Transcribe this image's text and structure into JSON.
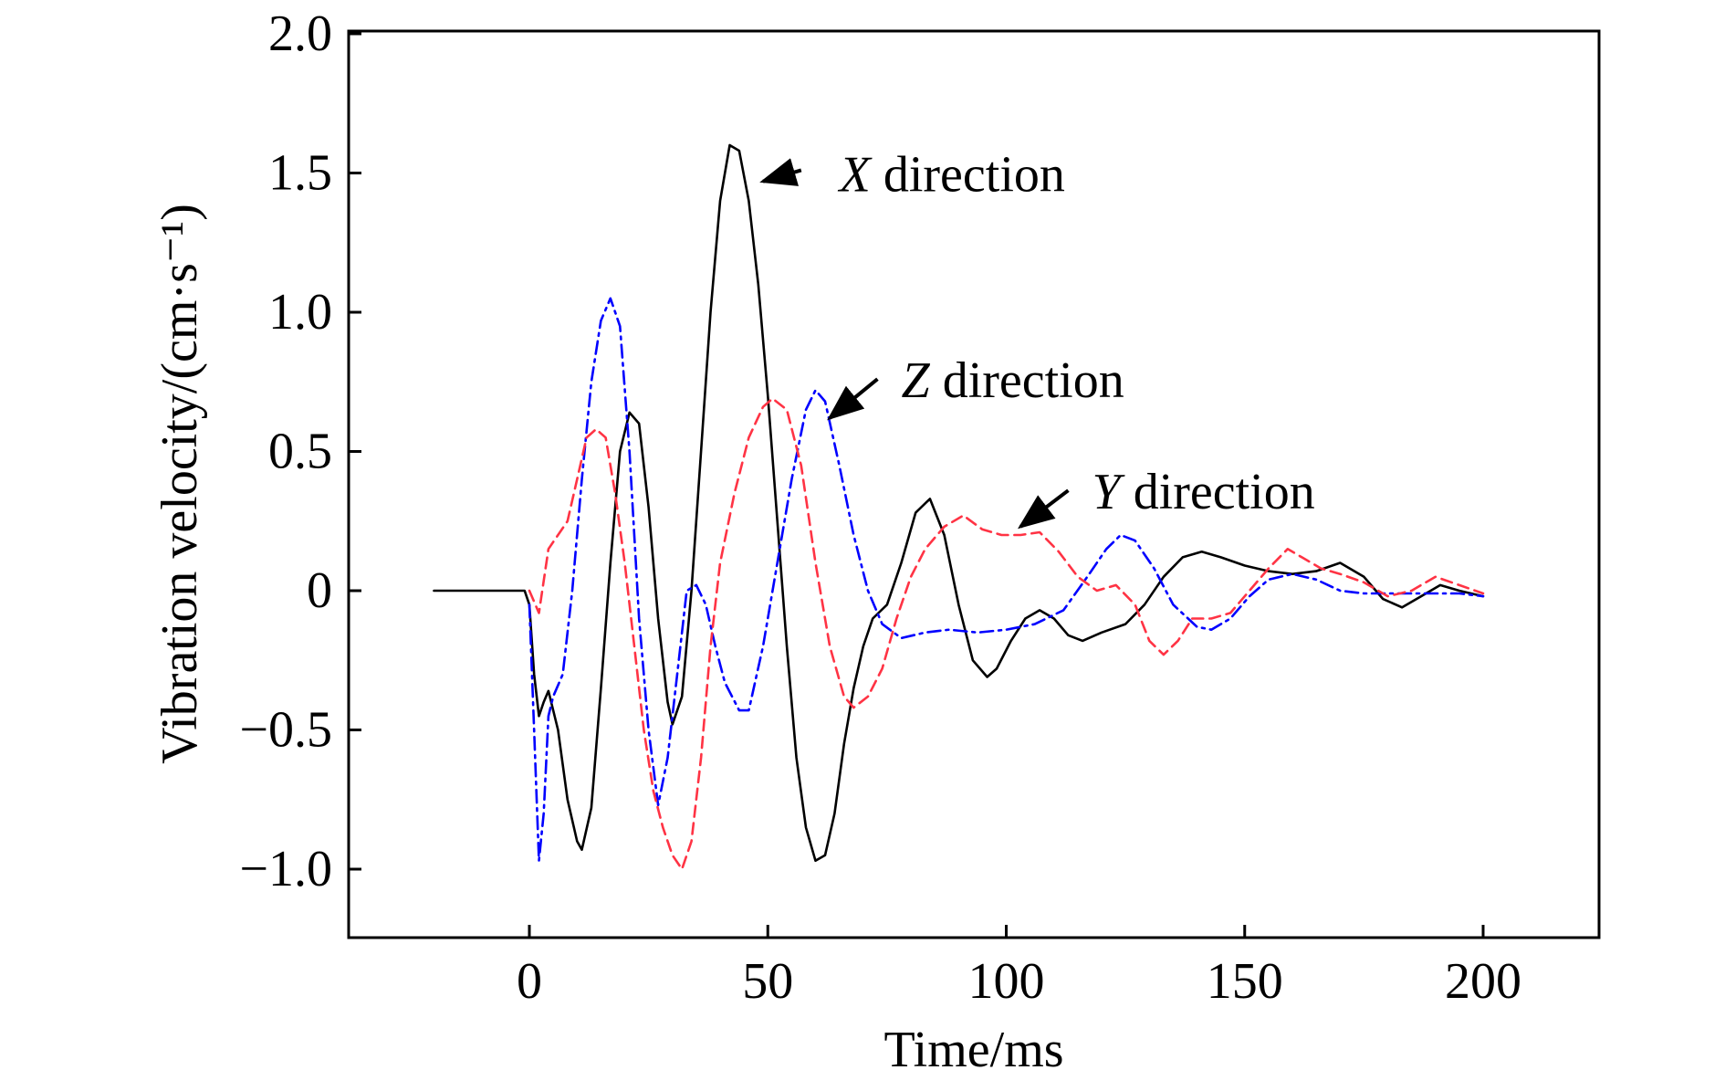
{
  "chart_data": {
    "type": "line",
    "xlabel": "Time/ms",
    "ylabel": "Vibration velocity/(cm·s⁻¹)",
    "xlim": [
      -40,
      225
    ],
    "ylim": [
      -1.25,
      2.0
    ],
    "x_ticks": [
      0,
      50,
      100,
      150,
      200
    ],
    "x_tick_labels": [
      "0",
      "50",
      "100",
      "150",
      "200"
    ],
    "y_ticks": [
      -1.0,
      -0.5,
      0,
      0.5,
      1.0,
      1.5,
      2.0
    ],
    "y_tick_labels": [
      "−1.0",
      "−0.5",
      "0",
      "0.5",
      "1.0",
      "1.5",
      "2.0"
    ],
    "grid": false,
    "legend": "none",
    "series": [
      {
        "color": "#000000",
        "style": "solid",
        "points": [
          [
            -20,
            0
          ],
          [
            -1,
            0
          ],
          [
            0,
            -0.05
          ],
          [
            1,
            -0.3
          ],
          [
            2,
            -0.45
          ],
          [
            3,
            -0.4
          ],
          [
            4,
            -0.36
          ],
          [
            6,
            -0.5
          ],
          [
            8,
            -0.75
          ],
          [
            10,
            -0.9
          ],
          [
            11,
            -0.93
          ],
          [
            13,
            -0.78
          ],
          [
            15,
            -0.35
          ],
          [
            17,
            0.1
          ],
          [
            19,
            0.5
          ],
          [
            21,
            0.64
          ],
          [
            23,
            0.6
          ],
          [
            25,
            0.3
          ],
          [
            27,
            -0.1
          ],
          [
            29,
            -0.4
          ],
          [
            30,
            -0.48
          ],
          [
            32,
            -0.38
          ],
          [
            34,
            0.0
          ],
          [
            36,
            0.5
          ],
          [
            38,
            1.0
          ],
          [
            40,
            1.4
          ],
          [
            42,
            1.6
          ],
          [
            44,
            1.58
          ],
          [
            46,
            1.4
          ],
          [
            48,
            1.1
          ],
          [
            50,
            0.7
          ],
          [
            52,
            0.25
          ],
          [
            54,
            -0.2
          ],
          [
            56,
            -0.6
          ],
          [
            58,
            -0.85
          ],
          [
            60,
            -0.97
          ],
          [
            62,
            -0.95
          ],
          [
            64,
            -0.8
          ],
          [
            66,
            -0.55
          ],
          [
            68,
            -0.35
          ],
          [
            70,
            -0.2
          ],
          [
            72,
            -0.1
          ],
          [
            75,
            -0.05
          ],
          [
            78,
            0.1
          ],
          [
            81,
            0.28
          ],
          [
            84,
            0.33
          ],
          [
            87,
            0.2
          ],
          [
            90,
            -0.05
          ],
          [
            93,
            -0.25
          ],
          [
            96,
            -0.31
          ],
          [
            98,
            -0.28
          ],
          [
            101,
            -0.18
          ],
          [
            104,
            -0.1
          ],
          [
            107,
            -0.07
          ],
          [
            110,
            -0.1
          ],
          [
            113,
            -0.16
          ],
          [
            116,
            -0.18
          ],
          [
            120,
            -0.15
          ],
          [
            125,
            -0.12
          ],
          [
            129,
            -0.05
          ],
          [
            133,
            0.05
          ],
          [
            137,
            0.12
          ],
          [
            141,
            0.14
          ],
          [
            145,
            0.12
          ],
          [
            150,
            0.09
          ],
          [
            155,
            0.07
          ],
          [
            160,
            0.06
          ],
          [
            165,
            0.07
          ],
          [
            170,
            0.1
          ],
          [
            175,
            0.05
          ],
          [
            179,
            -0.03
          ],
          [
            183,
            -0.06
          ],
          [
            187,
            -0.02
          ],
          [
            191,
            0.02
          ],
          [
            195,
            0.0
          ],
          [
            200,
            -0.02
          ]
        ]
      },
      {
        "color": "#0000ff",
        "style": "dashdot",
        "points": [
          [
            0,
            -0.05
          ],
          [
            1,
            -0.5
          ],
          [
            2,
            -0.97
          ],
          [
            3,
            -0.8
          ],
          [
            4,
            -0.45
          ],
          [
            5,
            -0.38
          ],
          [
            7,
            -0.3
          ],
          [
            9,
            0.0
          ],
          [
            11,
            0.4
          ],
          [
            13,
            0.75
          ],
          [
            15,
            0.97
          ],
          [
            17,
            1.05
          ],
          [
            19,
            0.95
          ],
          [
            21,
            0.5
          ],
          [
            23,
            -0.1
          ],
          [
            25,
            -0.5
          ],
          [
            27,
            -0.77
          ],
          [
            29,
            -0.6
          ],
          [
            31,
            -0.3
          ],
          [
            33,
            0.0
          ],
          [
            35,
            0.02
          ],
          [
            37,
            -0.05
          ],
          [
            39,
            -0.2
          ],
          [
            41,
            -0.33
          ],
          [
            44,
            -0.43
          ],
          [
            46,
            -0.43
          ],
          [
            49,
            -0.2
          ],
          [
            52,
            0.1
          ],
          [
            55,
            0.4
          ],
          [
            58,
            0.65
          ],
          [
            60,
            0.72
          ],
          [
            62,
            0.68
          ],
          [
            65,
            0.45
          ],
          [
            68,
            0.2
          ],
          [
            71,
            0.0
          ],
          [
            74,
            -0.12
          ],
          [
            78,
            -0.17
          ],
          [
            83,
            -0.15
          ],
          [
            88,
            -0.14
          ],
          [
            94,
            -0.15
          ],
          [
            100,
            -0.14
          ],
          [
            106,
            -0.12
          ],
          [
            112,
            -0.07
          ],
          [
            117,
            0.05
          ],
          [
            121,
            0.15
          ],
          [
            124,
            0.2
          ],
          [
            127,
            0.18
          ],
          [
            131,
            0.08
          ],
          [
            135,
            -0.05
          ],
          [
            140,
            -0.13
          ],
          [
            143,
            -0.14
          ],
          [
            147,
            -0.1
          ],
          [
            151,
            -0.02
          ],
          [
            155,
            0.04
          ],
          [
            160,
            0.06
          ],
          [
            165,
            0.04
          ],
          [
            170,
            0.0
          ],
          [
            175,
            -0.01
          ],
          [
            185,
            -0.01
          ],
          [
            195,
            -0.01
          ],
          [
            200,
            -0.02
          ]
        ]
      },
      {
        "color": "#ff3344",
        "style": "dashed",
        "points": [
          [
            0,
            0
          ],
          [
            2,
            -0.08
          ],
          [
            4,
            0.15
          ],
          [
            6,
            0.2
          ],
          [
            8,
            0.25
          ],
          [
            10,
            0.4
          ],
          [
            12,
            0.55
          ],
          [
            14,
            0.58
          ],
          [
            16,
            0.55
          ],
          [
            18,
            0.35
          ],
          [
            20,
            0.1
          ],
          [
            22,
            -0.2
          ],
          [
            24,
            -0.5
          ],
          [
            26,
            -0.72
          ],
          [
            28,
            -0.85
          ],
          [
            30,
            -0.95
          ],
          [
            32,
            -1.0
          ],
          [
            34,
            -0.9
          ],
          [
            36,
            -0.6
          ],
          [
            38,
            -0.2
          ],
          [
            40,
            0.1
          ],
          [
            43,
            0.35
          ],
          [
            46,
            0.55
          ],
          [
            49,
            0.66
          ],
          [
            51,
            0.69
          ],
          [
            54,
            0.65
          ],
          [
            57,
            0.45
          ],
          [
            60,
            0.1
          ],
          [
            63,
            -0.2
          ],
          [
            66,
            -0.38
          ],
          [
            68,
            -0.42
          ],
          [
            71,
            -0.38
          ],
          [
            74,
            -0.28
          ],
          [
            77,
            -0.1
          ],
          [
            80,
            0.05
          ],
          [
            83,
            0.15
          ],
          [
            87,
            0.23
          ],
          [
            91,
            0.27
          ],
          [
            95,
            0.22
          ],
          [
            99,
            0.2
          ],
          [
            103,
            0.2
          ],
          [
            107,
            0.21
          ],
          [
            111,
            0.14
          ],
          [
            115,
            0.05
          ],
          [
            119,
            0.0
          ],
          [
            123,
            0.02
          ],
          [
            127,
            -0.05
          ],
          [
            130,
            -0.18
          ],
          [
            133,
            -0.23
          ],
          [
            136,
            -0.18
          ],
          [
            139,
            -0.1
          ],
          [
            143,
            -0.1
          ],
          [
            147,
            -0.08
          ],
          [
            151,
            0.0
          ],
          [
            155,
            0.08
          ],
          [
            159,
            0.15
          ],
          [
            162,
            0.12
          ],
          [
            166,
            0.08
          ],
          [
            170,
            0.06
          ],
          [
            175,
            0.03
          ],
          [
            180,
            -0.02
          ],
          [
            185,
            0.0
          ],
          [
            190,
            0.05
          ],
          [
            195,
            0.02
          ],
          [
            200,
            -0.01
          ]
        ]
      }
    ],
    "annotations": [
      {
        "var": "X",
        "text": " direction",
        "x": 65,
        "y": 1.5,
        "arrow_to": [
          49,
          1.47
        ],
        "arrow_from": [
          57,
          1.51
        ]
      },
      {
        "var": "Z",
        "text": " direction",
        "x": 78,
        "y": 0.76,
        "arrow_to": [
          63,
          0.62
        ],
        "arrow_from": [
          73,
          0.76
        ]
      },
      {
        "var": "Y",
        "text": " direction",
        "x": 118,
        "y": 0.36,
        "arrow_to": [
          103,
          0.23
        ],
        "arrow_from": [
          113,
          0.36
        ]
      }
    ]
  }
}
